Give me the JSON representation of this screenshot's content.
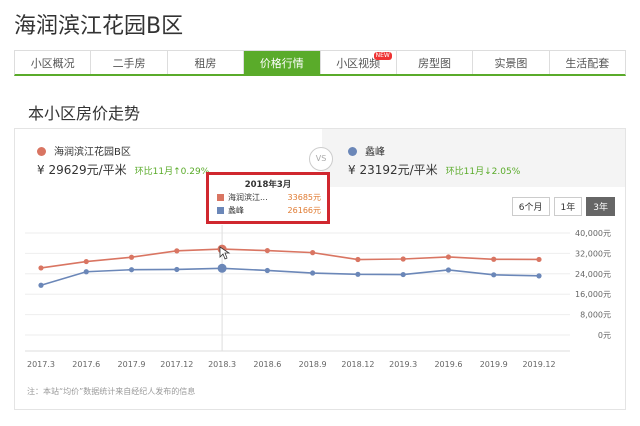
{
  "page": {
    "title": "海润滨江花园B区"
  },
  "tabs": [
    {
      "label": "小区概况"
    },
    {
      "label": "二手房"
    },
    {
      "label": "租房"
    },
    {
      "label": "价格行情",
      "active": true
    },
    {
      "label": "小区视频",
      "badge": "NEW"
    },
    {
      "label": "房型图"
    },
    {
      "label": "实景图"
    },
    {
      "label": "生活配套"
    }
  ],
  "section": {
    "title": "本小区房价走势"
  },
  "compare": {
    "left": {
      "name": "海润滨江花园B区",
      "price": "¥ 29629元/平米",
      "change": "环比11月↑0.29%",
      "color": "#d97562"
    },
    "vs": "VS",
    "right": {
      "name": "蠡峰",
      "price": "¥ 23192元/平米",
      "change": "环比11月↓2.05%",
      "color": "#6b87b8"
    }
  },
  "range_buttons": [
    {
      "label": "6个月"
    },
    {
      "label": "1年"
    },
    {
      "label": "3年",
      "active": true
    }
  ],
  "tooltip": {
    "title": "2018年3月",
    "rows": [
      {
        "name": "海润滨江...",
        "value": "33685元"
      },
      {
        "name": "蠡峰",
        "value": "26166元"
      }
    ]
  },
  "note": "注：本站“均价”数据统计来自经纪人发布的信息",
  "chart_data": {
    "type": "line",
    "x": [
      "2017.3",
      "2017.6",
      "2017.9",
      "2017.12",
      "2018.3",
      "2018.6",
      "2018.9",
      "2018.12",
      "2019.3",
      "2019.6",
      "2019.9",
      "2019.12"
    ],
    "y_ticks": [
      "40,000元",
      "32,000元",
      "24,000元",
      "16,000元",
      "8,000元",
      "0元"
    ],
    "ylim": [
      0,
      40000
    ],
    "series": [
      {
        "name": "海润滨江花园B区",
        "color": "#d97562",
        "values": [
          26300,
          28800,
          30500,
          33000,
          33685,
          33100,
          32300,
          29600,
          29800,
          30600,
          29700,
          29629
        ]
      },
      {
        "name": "蠡峰",
        "color": "#6b87b8",
        "values": [
          19500,
          24800,
          25600,
          25700,
          26166,
          25300,
          24300,
          23800,
          23700,
          25500,
          23600,
          23192
        ]
      }
    ],
    "highlight_index": 4
  }
}
